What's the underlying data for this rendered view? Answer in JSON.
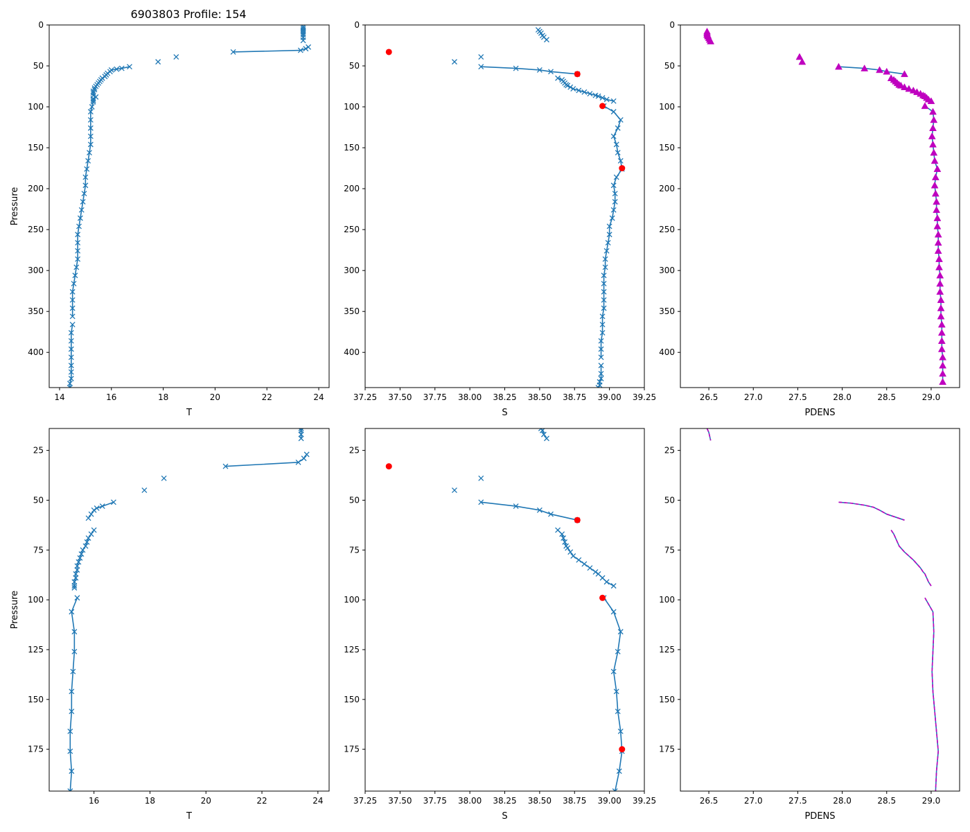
{
  "figure": {
    "title": "6903803 Profile: 154",
    "colors": {
      "series": "#1f77b4",
      "flag": "#ff0000",
      "density": "#bf00bf",
      "axis": "#000000"
    }
  },
  "chart_data": [
    {
      "panel": "top-left",
      "type": "line",
      "title": "6903803 Profile: 154",
      "xlabel": "T",
      "ylabel": "Pressure",
      "xlim": [
        13.6,
        24.4
      ],
      "ylim": [
        443,
        0
      ],
      "y_inverted": true,
      "xticks": [
        14,
        16,
        18,
        20,
        22,
        24
      ],
      "yticks": [
        0,
        50,
        100,
        150,
        200,
        250,
        300,
        350,
        400
      ],
      "marker": "x",
      "segments": [
        {
          "x": [
            23.4,
            23.4,
            23.4,
            23.4,
            23.4,
            23.4,
            23.4,
            23.4
          ],
          "y": [
            2,
            4,
            6,
            8,
            10,
            12,
            15,
            19
          ]
        },
        {
          "x": [
            23.6,
            23.5,
            23.3,
            20.7
          ],
          "y": [
            27,
            29,
            31,
            33
          ]
        },
        {
          "x": [
            16.7,
            16.4,
            16.2,
            16.0,
            15.95,
            15.85,
            15.8,
            15.75,
            15.65,
            15.6,
            15.55,
            15.5,
            15.45,
            15.4,
            15.35,
            15.35,
            15.3,
            15.3,
            15.3,
            15.4,
            15.3,
            15.3,
            15.3,
            15.25,
            15.2,
            15.2,
            15.2,
            15.2,
            15.2,
            15.15,
            15.1,
            15.05,
            15.0,
            15.0,
            14.95,
            14.9,
            14.85,
            14.8,
            14.75,
            14.7,
            14.7,
            14.7,
            14.7,
            14.65,
            14.6,
            14.55,
            14.5,
            14.5,
            14.5,
            14.5
          ],
          "y": [
            51,
            53,
            54,
            55,
            57,
            59,
            61,
            63,
            65,
            67,
            69,
            71,
            73,
            75,
            77,
            79,
            81,
            83,
            86,
            88,
            90,
            92,
            94,
            100,
            106,
            116,
            126,
            136,
            146,
            156,
            166,
            176,
            186,
            196,
            206,
            216,
            226,
            236,
            246,
            256,
            266,
            276,
            286,
            296,
            306,
            316,
            326,
            336,
            346,
            356
          ]
        },
        {
          "x": [
            14.5,
            14.45,
            14.45,
            14.45,
            14.45,
            14.45,
            14.45,
            14.45,
            14.4,
            14.4
          ],
          "y": [
            366,
            376,
            386,
            396,
            406,
            416,
            424,
            432,
            438,
            443
          ]
        }
      ],
      "points": {
        "x": [
          18.5,
          17.8
        ],
        "y": [
          39,
          45
        ]
      }
    },
    {
      "panel": "top-middle",
      "type": "line",
      "xlabel": "S",
      "ylabel": "",
      "xlim": [
        37.25,
        39.25
      ],
      "ylim": [
        443,
        0
      ],
      "y_inverted": true,
      "xticks": [
        37.25,
        37.5,
        37.75,
        38.0,
        38.25,
        38.5,
        38.75,
        39.0,
        39.25
      ],
      "xticklabels": [
        "37.25",
        "37.50",
        "37.75",
        "38.00",
        "38.25",
        "38.50",
        "38.75",
        "39.00",
        "39.25"
      ],
      "yticks": [
        0,
        50,
        100,
        150,
        200,
        250,
        300,
        350,
        400
      ],
      "marker": "x",
      "segments": [
        {
          "x": [
            38.49,
            38.5,
            38.51,
            38.52,
            38.53,
            38.55
          ],
          "y": [
            6,
            8,
            10,
            13,
            15,
            18
          ]
        },
        {
          "x": [
            38.08,
            38.33,
            38.5,
            38.58,
            38.77
          ],
          "y": [
            51,
            53,
            55,
            57,
            60
          ]
        },
        {
          "x": [
            38.63,
            38.66,
            38.67,
            38.68,
            38.69,
            38.7,
            38.72,
            38.74,
            38.78,
            38.82,
            38.86,
            38.9,
            38.92,
            38.95,
            38.98,
            39.03
          ],
          "y": [
            65,
            67,
            69,
            71,
            73,
            74,
            76,
            78,
            80,
            82,
            84,
            86,
            87,
            89,
            91,
            93
          ]
        },
        {
          "x": [
            38.96,
            39.03,
            39.08,
            39.06,
            39.03,
            39.05,
            39.06,
            39.08,
            39.09,
            39.05,
            39.03,
            39.04,
            39.04,
            39.03,
            39.02,
            39.0,
            39.0,
            38.99,
            38.98,
            38.97,
            38.97,
            38.96,
            38.96,
            38.96,
            38.96,
            38.96,
            38.95,
            38.95,
            38.95,
            38.94,
            38.94,
            38.94
          ],
          "y": [
            99,
            106,
            116,
            126,
            136,
            146,
            156,
            166,
            176,
            186,
            196,
            206,
            216,
            226,
            236,
            246,
            256,
            266,
            276,
            286,
            296,
            306,
            316,
            326,
            336,
            346,
            356,
            366,
            376,
            386,
            396,
            406
          ]
        },
        {
          "x": [
            38.94,
            38.94,
            38.94,
            38.93,
            38.93,
            38.92
          ],
          "y": [
            416,
            426,
            432,
            436,
            440,
            443
          ]
        }
      ],
      "points": {
        "x": [
          38.08,
          37.89
        ],
        "y": [
          39,
          45
        ]
      },
      "flagged": {
        "x": [
          37.42,
          38.77,
          38.95,
          39.09
        ],
        "y": [
          33,
          60,
          99,
          175
        ]
      }
    },
    {
      "panel": "top-right",
      "type": "line",
      "xlabel": "PDENS",
      "ylabel": "",
      "xlim": [
        26.18,
        29.32
      ],
      "ylim": [
        443,
        0
      ],
      "y_inverted": true,
      "xticks": [
        26.5,
        27.0,
        27.5,
        28.0,
        28.5,
        29.0
      ],
      "xticklabels": [
        "26.5",
        "27.0",
        "27.5",
        "28.0",
        "28.5",
        "29.0"
      ],
      "yticks": [
        0,
        50,
        100,
        150,
        200,
        250,
        300,
        350,
        400
      ],
      "marker": "triangle",
      "segments": [
        {
          "x": [
            26.48,
            26.48,
            26.48,
            26.49,
            26.49,
            26.5,
            26.51,
            26.52
          ],
          "y": [
            8,
            10,
            12,
            13,
            14,
            16,
            18,
            20
          ]
        },
        {
          "x": [
            27.96,
            28.25,
            28.42,
            28.5,
            28.7
          ],
          "y": [
            51,
            53,
            55,
            57,
            60
          ]
        },
        {
          "x": [
            28.55,
            28.58,
            28.6,
            28.62,
            28.64,
            28.66,
            28.7,
            28.75,
            28.8,
            28.84,
            28.88,
            28.91,
            28.93,
            28.95,
            28.97,
            29.0
          ],
          "y": [
            65,
            67,
            69,
            71,
            73,
            74,
            76,
            78,
            80,
            82,
            84,
            86,
            87,
            89,
            91,
            93
          ]
        },
        {
          "x": [
            28.93,
            29.02,
            29.03,
            29.02,
            29.01,
            29.02,
            29.03,
            29.04,
            29.07,
            29.05,
            29.04,
            29.05,
            29.06,
            29.06,
            29.07,
            29.07,
            29.08,
            29.08,
            29.08,
            29.09,
            29.09,
            29.1,
            29.1,
            29.1,
            29.11,
            29.11,
            29.11,
            29.12,
            29.12,
            29.12,
            29.12,
            29.13,
            29.13,
            29.13,
            29.13
          ],
          "y": [
            99,
            106,
            116,
            126,
            136,
            146,
            156,
            166,
            176,
            186,
            196,
            206,
            216,
            226,
            236,
            246,
            256,
            266,
            276,
            286,
            296,
            306,
            316,
            326,
            336,
            346,
            356,
            366,
            376,
            386,
            396,
            406,
            416,
            426,
            436
          ]
        }
      ],
      "points": {
        "x": [
          27.52,
          27.55
        ],
        "y": [
          39,
          45
        ]
      }
    },
    {
      "panel": "bottom-left",
      "type": "line",
      "xlabel": "T",
      "ylabel": "Pressure",
      "xlim": [
        14.4,
        24.4
      ],
      "ylim": [
        196,
        14
      ],
      "y_inverted": true,
      "xticks": [
        16,
        18,
        20,
        22,
        24
      ],
      "yticks": [
        25,
        50,
        75,
        100,
        125,
        150,
        175
      ],
      "marker": "x",
      "segments": [
        {
          "x": [
            23.4,
            23.4,
            23.4,
            23.4
          ],
          "y": [
            14,
            15,
            17,
            19
          ]
        },
        {
          "x": [
            23.6,
            23.5,
            23.3,
            20.7
          ],
          "y": [
            27,
            29,
            31,
            33
          ]
        },
        {
          "x": [
            16.7,
            16.3,
            16.1,
            16.0,
            15.9,
            15.8
          ],
          "y": [
            51,
            53,
            54,
            55,
            57,
            59
          ]
        },
        {
          "x": [
            16.0,
            15.9,
            15.8,
            15.75,
            15.7,
            15.6,
            15.55,
            15.5,
            15.45,
            15.4,
            15.4,
            15.35,
            15.35,
            15.3,
            15.3,
            15.3
          ],
          "y": [
            65,
            67,
            69,
            71,
            73,
            75,
            77,
            79,
            81,
            83,
            85,
            87,
            89,
            91,
            93,
            94
          ]
        },
        {
          "x": [
            15.4,
            15.2,
            15.3,
            15.3,
            15.25,
            15.2,
            15.2,
            15.15,
            15.15,
            15.2,
            15.15
          ],
          "y": [
            99,
            106,
            116,
            126,
            136,
            146,
            156,
            166,
            176,
            186,
            196
          ]
        }
      ],
      "points": {
        "x": [
          18.5,
          17.8
        ],
        "y": [
          39,
          45
        ]
      }
    },
    {
      "panel": "bottom-middle",
      "type": "line",
      "xlabel": "S",
      "ylabel": "",
      "xlim": [
        37.25,
        39.25
      ],
      "ylim": [
        196,
        14
      ],
      "y_inverted": true,
      "xticks": [
        37.25,
        37.5,
        37.75,
        38.0,
        38.25,
        38.5,
        38.75,
        39.0,
        39.25
      ],
      "xticklabels": [
        "37.25",
        "37.50",
        "37.75",
        "38.00",
        "38.25",
        "38.50",
        "38.75",
        "39.00",
        "39.25"
      ],
      "yticks": [
        25,
        50,
        75,
        100,
        125,
        150,
        175
      ],
      "marker": "x",
      "segments": [
        {
          "x": [
            38.51,
            38.52,
            38.53,
            38.55
          ],
          "y": [
            14,
            15,
            17,
            19
          ]
        },
        {
          "x": [
            38.08,
            38.33,
            38.5,
            38.58,
            38.77
          ],
          "y": [
            51,
            53,
            55,
            57,
            60
          ]
        },
        {
          "x": [
            38.63,
            38.66,
            38.67,
            38.68,
            38.69,
            38.7,
            38.72,
            38.74,
            38.78,
            38.82,
            38.86,
            38.9,
            38.92,
            38.95,
            38.98,
            39.03
          ],
          "y": [
            65,
            67,
            69,
            71,
            73,
            74,
            76,
            78,
            80,
            82,
            84,
            86,
            87,
            89,
            91,
            93
          ]
        },
        {
          "x": [
            38.96,
            39.03,
            39.08,
            39.06,
            39.03,
            39.05,
            39.06,
            39.08,
            39.09,
            39.07,
            39.04
          ],
          "y": [
            99,
            106,
            116,
            126,
            136,
            146,
            156,
            166,
            176,
            186,
            196
          ]
        }
      ],
      "points": {
        "x": [
          38.08,
          37.89
        ],
        "y": [
          39,
          45
        ]
      },
      "flagged": {
        "x": [
          37.42,
          38.77,
          38.95,
          39.09
        ],
        "y": [
          33,
          60,
          99,
          175
        ]
      }
    },
    {
      "panel": "bottom-right",
      "type": "line",
      "xlabel": "PDENS",
      "ylabel": "",
      "xlim": [
        26.18,
        29.32
      ],
      "ylim": [
        196,
        14
      ],
      "y_inverted": true,
      "xticks": [
        26.5,
        27.0,
        27.5,
        28.0,
        28.5,
        29.0
      ],
      "xticklabels": [
        "26.5",
        "27.0",
        "27.5",
        "28.0",
        "28.5",
        "29.0"
      ],
      "yticks": [
        25,
        50,
        75,
        100,
        125,
        150,
        175
      ],
      "marker": "none",
      "overlay": "dashed",
      "segments": [
        {
          "x": [
            26.48,
            26.49,
            26.5,
            26.51,
            26.52
          ],
          "y": [
            14,
            15,
            16,
            18,
            20
          ]
        },
        {
          "x": [
            27.96,
            28.1,
            28.25,
            28.35,
            28.42,
            28.5,
            28.7
          ],
          "y": [
            51,
            51.5,
            52.5,
            53.5,
            55,
            57,
            60
          ]
        },
        {
          "x": [
            28.55,
            28.58,
            28.6,
            28.62,
            28.64,
            28.66,
            28.7,
            28.75,
            28.8,
            28.84,
            28.88,
            28.91,
            28.93,
            28.95,
            28.97,
            29.0
          ],
          "y": [
            65,
            67,
            69,
            71,
            73,
            74,
            76,
            78,
            80,
            82,
            84,
            86,
            87,
            89,
            91,
            93
          ]
        },
        {
          "x": [
            28.93,
            29.02,
            29.03,
            29.02,
            29.01,
            29.02,
            29.04,
            29.06,
            29.08,
            29.06,
            29.05
          ],
          "y": [
            99,
            106,
            116,
            126,
            136,
            146,
            156,
            166,
            176,
            186,
            196
          ]
        }
      ]
    }
  ]
}
